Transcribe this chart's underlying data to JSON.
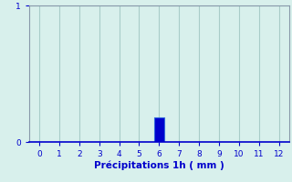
{
  "categories": [
    0,
    1,
    2,
    3,
    4,
    5,
    6,
    7,
    8,
    9,
    10,
    11,
    12
  ],
  "values": [
    0,
    0,
    0,
    0,
    0,
    0,
    0.18,
    0,
    0,
    0,
    0,
    0,
    0
  ],
  "bar_color": "#0000cc",
  "bar_edge_color": "#3366dd",
  "xlabel": "Précipitations 1h ( mm )",
  "ylim": [
    0,
    1
  ],
  "xlim": [
    -0.5,
    12.5
  ],
  "yticks": [
    0,
    1
  ],
  "xticks": [
    0,
    1,
    2,
    3,
    4,
    5,
    6,
    7,
    8,
    9,
    10,
    11,
    12
  ],
  "background_color": "#d8f0ec",
  "grid_color": "#a8ccc8",
  "text_color": "#0000cc",
  "tick_label_fontsize": 6.5,
  "xlabel_fontsize": 7.5,
  "bar_width": 0.5,
  "spine_color": "#8899aa",
  "axis_color": "#0000cc"
}
